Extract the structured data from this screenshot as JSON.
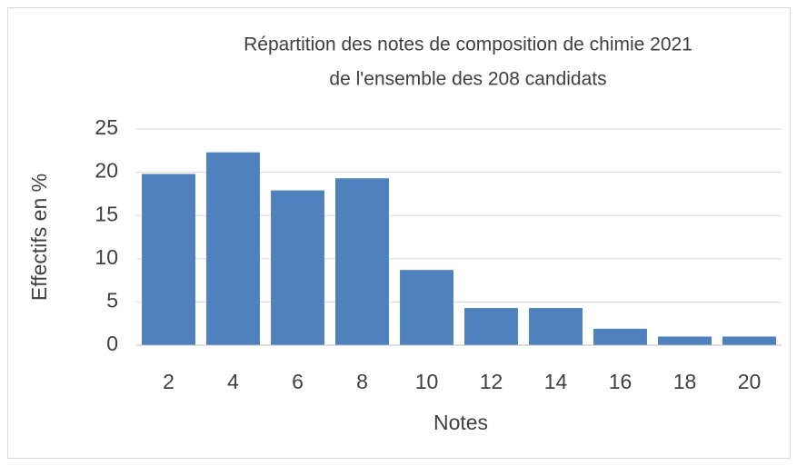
{
  "chart_data": {
    "type": "bar",
    "title": [
      "Répartition des notes de composition de chimie 2021",
      "de l'ensemble des 208 candidats"
    ],
    "x_label": "Notes",
    "y_label": "Effectifs en %",
    "categories": [
      "2",
      "4",
      "6",
      "8",
      "10",
      "12",
      "14",
      "16",
      "18",
      "20"
    ],
    "values": [
      19.8,
      22.3,
      17.9,
      19.3,
      8.7,
      4.3,
      4.3,
      1.9,
      1.0,
      1.0
    ],
    "color": "#4f81bd",
    "ylim": [
      0,
      25
    ],
    "yticks": [
      0,
      5,
      10,
      15,
      20,
      25
    ],
    "grid": true
  }
}
